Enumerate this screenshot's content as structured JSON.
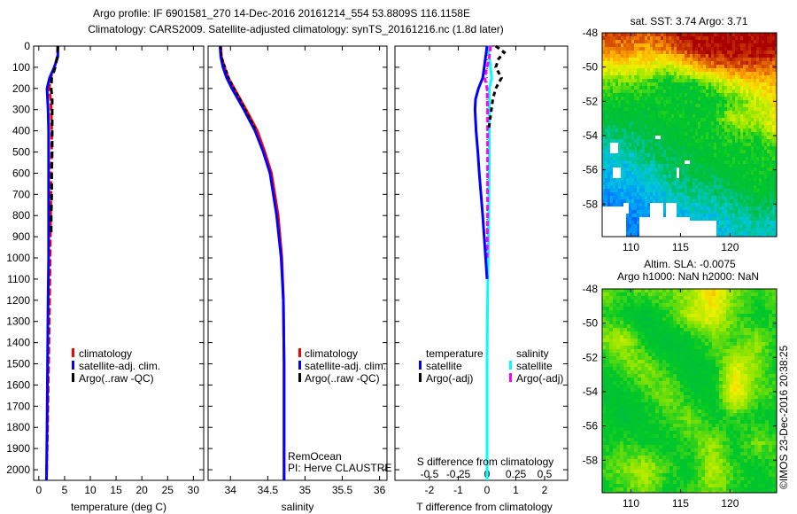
{
  "title_line1": "Argo profile: IF 6901581_270 14-Dec-2016 20161214_554 53.8809S 116.1158E",
  "title_line2": "Climatology: CARS2009. Satellite-adjusted climatology: synTS_20161216.nc (1.8d later)",
  "credit": "RemOcean",
  "pi": "PI: Herve CLAUSTRE",
  "copyright": "©IMOS 23-Dec-2016 20:38:25",
  "colors": {
    "climatology": "#ff0000",
    "satellite": "#0000ff",
    "argo": "#000000",
    "sal_satellite": "#00ffff",
    "sal_argo": "#ff00ff"
  },
  "chart_data": [
    {
      "type": "line",
      "id": "temperature",
      "xlabel": "temperature (deg C)",
      "xlim": [
        -1,
        32
      ],
      "ylim": [
        0,
        2050
      ],
      "xticks": [
        "0",
        "5",
        "10",
        "15",
        "20",
        "25",
        "30"
      ],
      "xtick_values": [
        0,
        5,
        10,
        15,
        20,
        25,
        30
      ],
      "yticks": [
        "0",
        "100",
        "200",
        "300",
        "400",
        "500",
        "600",
        "700",
        "800",
        "900",
        "1000",
        "1100",
        "1200",
        "1300",
        "1400",
        "1500",
        "1600",
        "1700",
        "1800",
        "1900",
        "2000"
      ],
      "legend": [
        "climatology",
        "satellite-adj. clim.",
        "Argo(..raw -QC)"
      ],
      "depth": [
        0,
        50,
        100,
        150,
        200,
        250,
        300,
        400,
        500,
        600,
        800,
        1000,
        1200,
        1500,
        1800,
        2050
      ],
      "series": [
        {
          "name": "climatology",
          "values": [
            3.7,
            3.6,
            3.0,
            2.3,
            2.0,
            2.3,
            2.4,
            2.5,
            2.5,
            2.4,
            2.3,
            2.2,
            2.1,
            1.9,
            1.7,
            1.5
          ]
        },
        {
          "name": "satellite-adj. clim.",
          "values": [
            3.7,
            3.7,
            3.0,
            2.1,
            1.6,
            1.7,
            1.8,
            1.9,
            1.9,
            1.9,
            1.9,
            1.9,
            1.8,
            1.7,
            1.6,
            1.5
          ]
        },
        {
          "name": "Argo(..raw -QC)",
          "depth": [
            0,
            50,
            100,
            150,
            200,
            250,
            300,
            400,
            500,
            600,
            700,
            800,
            900
          ],
          "values": [
            3.71,
            3.6,
            3.2,
            2.5,
            2.4,
            2.6,
            2.6,
            2.6,
            2.6,
            2.5,
            2.5,
            2.4,
            2.4
          ]
        }
      ]
    },
    {
      "type": "line",
      "id": "salinity",
      "xlabel": "salinity",
      "xlim": [
        33.7,
        36.1
      ],
      "ylim": [
        0,
        2050
      ],
      "xticks": [
        "34",
        "34.5",
        "35",
        "35.5",
        "36"
      ],
      "xtick_values": [
        34,
        34.5,
        35,
        35.5,
        36
      ],
      "legend": [
        "climatology",
        "satellite-adj. clim.",
        "Argo(..raw -QC)"
      ],
      "depth": [
        0,
        50,
        100,
        150,
        200,
        250,
        300,
        400,
        500,
        600,
        800,
        1000,
        1200,
        1500,
        1800,
        2050
      ],
      "series": [
        {
          "name": "climatology",
          "values": [
            33.87,
            33.88,
            33.92,
            33.97,
            34.05,
            34.13,
            34.21,
            34.36,
            34.46,
            34.55,
            34.64,
            34.69,
            34.71,
            34.72,
            34.72,
            34.72
          ]
        },
        {
          "name": "satellite-adj. clim.",
          "values": [
            33.86,
            33.87,
            33.9,
            33.95,
            34.02,
            34.1,
            34.18,
            34.33,
            34.44,
            34.53,
            34.62,
            34.68,
            34.71,
            34.72,
            34.72,
            34.72
          ]
        },
        {
          "name": "Argo(..raw -QC)",
          "depth": [
            0,
            50,
            100,
            150,
            200,
            250,
            300,
            400
          ],
          "values": [
            33.87,
            33.88,
            33.93,
            33.98,
            34.05,
            34.13,
            34.2,
            34.35
          ]
        }
      ]
    },
    {
      "type": "line",
      "id": "difference",
      "xlabel": "T difference from climatology",
      "x2label": "S difference from climatology",
      "xlim": [
        -3.2,
        2.8
      ],
      "ylim": [
        0,
        2050
      ],
      "xticks": [
        "-2",
        "-1",
        "0",
        "1",
        "2"
      ],
      "xtick_values": [
        -2,
        -1,
        0,
        1,
        2
      ],
      "x2ticks": [
        "-0.5",
        "-0.25",
        "0",
        "0.25",
        "0.5"
      ],
      "x2tick_values": [
        -0.5,
        -0.25,
        0,
        0.25,
        0.5
      ],
      "legend": {
        "temperature_header": "temperature",
        "salinity_header": "salinity",
        "items": [
          "satellite",
          "Argo(-adj)",
          "satellite",
          "Argo(-adj)"
        ]
      },
      "depth": [
        0,
        50,
        100,
        150,
        200,
        250,
        300,
        400,
        500,
        600,
        800,
        1000,
        1100
      ],
      "series": [
        {
          "name": "T satellite",
          "values": [
            0,
            -0.05,
            -0.1,
            -0.15,
            -0.3,
            -0.4,
            -0.42,
            -0.38,
            -0.32,
            -0.27,
            -0.15,
            -0.05,
            0
          ]
        },
        {
          "name": "T Argo(-adj)",
          "depth": [
            0,
            30,
            60,
            100,
            150,
            200,
            250,
            300,
            350,
            400
          ],
          "values": [
            0.3,
            0.6,
            0.4,
            0.3,
            0.5,
            0.3,
            0.2,
            0.15,
            0.1,
            0.05
          ]
        },
        {
          "name": "S satellite",
          "depth": [
            0,
            50,
            100,
            150,
            200,
            300,
            500,
            800,
            1000,
            1200,
            1500,
            2050
          ],
          "values": [
            0,
            0.02,
            0.03,
            0.04,
            0.02,
            0.02,
            0.02,
            0.015,
            0.01,
            0.005,
            0,
            0
          ]
        },
        {
          "name": "S Argo(-adj)",
          "depth": [
            0,
            50,
            100,
            150,
            200,
            300,
            500,
            800,
            1000
          ],
          "values": [
            0.03,
            0.02,
            0.0,
            -0.02,
            0.0,
            0.005,
            0.005,
            0.005,
            0.0
          ]
        }
      ]
    },
    {
      "type": "heatmap",
      "id": "sst_map",
      "title": "sat. SST: 3.74 Argo: 3.71",
      "xlim": [
        107.1,
        124.7
      ],
      "ylim": [
        -59.9,
        -48
      ],
      "xticks": [
        "110",
        "115",
        "120"
      ],
      "xtick_values": [
        110,
        115,
        120
      ],
      "yticks": [
        "-48",
        "-50",
        "-52",
        "-54",
        "-56",
        "-58"
      ],
      "ytick_values": [
        -48,
        -50,
        -52,
        -54,
        -56,
        -58
      ],
      "grid_lat": [
        -48,
        -49,
        -50,
        -51,
        -52,
        -53,
        -54,
        -55,
        -56,
        -57,
        -58,
        -59,
        -60
      ],
      "grid_lon": [
        107,
        109.25,
        111.5,
        113.75,
        116,
        118.25,
        120.5,
        122.75,
        125
      ],
      "grid_index": [
        [
          0.93,
          0.93,
          0.9,
          0.94,
          1,
          1,
          1,
          1,
          1
        ],
        [
          0.86,
          0.85,
          0.82,
          0.86,
          0.95,
          1,
          1,
          1,
          1
        ],
        [
          0.72,
          0.72,
          0.7,
          0.66,
          0.76,
          0.86,
          0.9,
          0.9,
          0.86
        ],
        [
          0.58,
          0.58,
          0.56,
          0.5,
          0.5,
          0.6,
          0.7,
          0.76,
          0.8
        ],
        [
          0.5,
          0.5,
          0.5,
          0.5,
          0.5,
          0.5,
          0.55,
          0.66,
          0.76
        ],
        [
          0.46,
          0.46,
          0.46,
          0.5,
          0.5,
          0.52,
          0.66,
          0.64,
          0.74
        ],
        [
          0.4,
          0.4,
          0.44,
          0.46,
          0.5,
          0.5,
          0.54,
          0.55,
          0.7
        ],
        [
          0.34,
          0.35,
          0.4,
          0.44,
          0.46,
          0.5,
          0.5,
          0.5,
          0.55
        ],
        [
          0.3,
          0.3,
          0.35,
          0.4,
          0.44,
          0.46,
          0.5,
          0.5,
          0.5
        ],
        [
          0.26,
          0.28,
          0.3,
          0.35,
          0.4,
          0.4,
          0.45,
          0.5,
          0.46
        ],
        [
          0.2,
          0.24,
          0.26,
          0.3,
          0.34,
          0.36,
          0.4,
          0.44,
          0.4
        ],
        [
          0.18,
          0.2,
          0.2,
          0.25,
          0.3,
          0.3,
          0.35,
          0.36,
          0.36
        ],
        [
          0.16,
          0.18,
          0.2,
          0.22,
          0.28,
          0.28,
          0.32,
          0.34,
          0.34
        ]
      ],
      "nan_regions": [
        [
          107.1,
          109.5,
          -58.1,
          -60
        ],
        [
          109.2,
          109.8,
          -57.9,
          -58.5
        ],
        [
          110.8,
          116,
          -58.7,
          -60
        ],
        [
          112,
          113.2,
          -57.9,
          -58.7
        ],
        [
          113.5,
          114.6,
          -57.9,
          -58.7
        ],
        [
          116,
          118.6,
          -58.9,
          -60
        ],
        [
          108.2,
          109.1,
          -55.8,
          -56.4
        ],
        [
          108,
          108.8,
          -54.5,
          -55
        ],
        [
          112.4,
          113,
          -54.1,
          -54.3
        ],
        [
          114.5,
          114.8,
          -55.9,
          -56.4
        ],
        [
          115.5,
          115.9,
          -55.4,
          -55.6
        ]
      ]
    },
    {
      "type": "heatmap",
      "id": "sla_map",
      "title_line1": "Altim. SLA: -0.0075",
      "title_line2": "Argo h1000: NaN h2000: NaN",
      "xlim": [
        107.1,
        124.7
      ],
      "ylim": [
        -59.9,
        -48
      ],
      "xticks": [
        "110",
        "115",
        "120"
      ],
      "xtick_values": [
        110,
        115,
        120
      ],
      "yticks": [
        "-48",
        "-50",
        "-52",
        "-54",
        "-56",
        "-58"
      ],
      "ytick_values": [
        -48,
        -50,
        -52,
        -54,
        -56,
        -58
      ],
      "grid_lat": [
        -48,
        -49.5,
        -51,
        -52.5,
        -54,
        -55.5,
        -57,
        -58.5,
        -60
      ],
      "grid_lon": [
        107,
        109.25,
        111.5,
        113.75,
        116,
        118.25,
        120.5,
        122.75,
        125
      ],
      "grid_index": [
        [
          0.62,
          0.55,
          0.6,
          0.58,
          0.62,
          0.78,
          0.6,
          0.55,
          0.6
        ],
        [
          0.55,
          0.5,
          0.45,
          0.55,
          0.66,
          0.72,
          0.58,
          0.5,
          0.55
        ],
        [
          0.6,
          0.66,
          0.5,
          0.45,
          0.5,
          0.58,
          0.55,
          0.62,
          0.5
        ],
        [
          0.5,
          0.58,
          0.62,
          0.52,
          0.45,
          0.5,
          0.7,
          0.6,
          0.5
        ],
        [
          0.45,
          0.5,
          0.55,
          0.62,
          0.5,
          0.48,
          0.76,
          0.58,
          0.55
        ],
        [
          0.55,
          0.45,
          0.5,
          0.55,
          0.6,
          0.5,
          0.55,
          0.52,
          0.5
        ],
        [
          0.5,
          0.55,
          0.5,
          0.5,
          0.55,
          0.62,
          0.5,
          0.6,
          0.55
        ],
        [
          0.55,
          0.6,
          0.66,
          0.55,
          0.5,
          0.66,
          0.55,
          0.5,
          0.55
        ],
        [
          0.5,
          0.55,
          0.6,
          0.5,
          0.55,
          0.6,
          0.55,
          0.5,
          0.5
        ]
      ]
    }
  ]
}
